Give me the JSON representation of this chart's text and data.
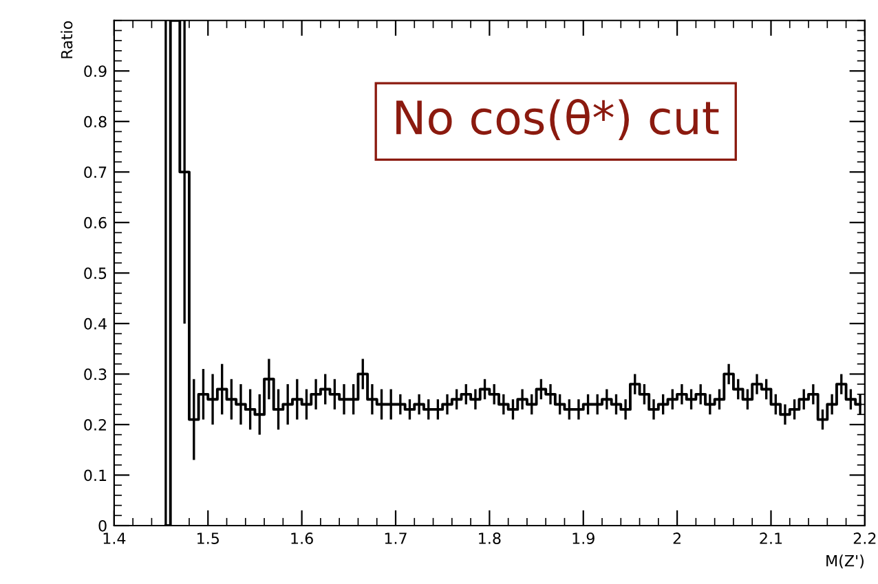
{
  "chart_data": {
    "type": "step",
    "xlabel": "M(Z')",
    "ylabel": "Ratio",
    "annotations": [
      "No cos(θ*) cut"
    ],
    "x": [
      1.455,
      1.465,
      1.475,
      1.485,
      1.495,
      1.505,
      1.515,
      1.525,
      1.535,
      1.545,
      1.555,
      1.565,
      1.575,
      1.585,
      1.595,
      1.605,
      1.615,
      1.625,
      1.635,
      1.645,
      1.655,
      1.665,
      1.675,
      1.685,
      1.695,
      1.705,
      1.715,
      1.725,
      1.735,
      1.745,
      1.755,
      1.765,
      1.775,
      1.785,
      1.795,
      1.805,
      1.815,
      1.825,
      1.835,
      1.845,
      1.855,
      1.865,
      1.875,
      1.885,
      1.895,
      1.905,
      1.915,
      1.925,
      1.935,
      1.945,
      1.955,
      1.965,
      1.975,
      1.985,
      1.995,
      2.005,
      2.015,
      2.025,
      2.035,
      2.045,
      2.055,
      2.065,
      2.075,
      2.085,
      2.095,
      2.105,
      2.115,
      2.125,
      2.135,
      2.145,
      2.155,
      2.165,
      2.175,
      2.185,
      2.195
    ],
    "values": [
      0,
      1.0,
      0.7,
      0.21,
      0.26,
      0.25,
      0.27,
      0.25,
      0.24,
      0.23,
      0.22,
      0.29,
      0.23,
      0.24,
      0.25,
      0.24,
      0.26,
      0.27,
      0.26,
      0.25,
      0.25,
      0.3,
      0.25,
      0.24,
      0.24,
      0.24,
      0.23,
      0.24,
      0.23,
      0.23,
      0.24,
      0.25,
      0.26,
      0.25,
      0.27,
      0.26,
      0.24,
      0.23,
      0.25,
      0.24,
      0.27,
      0.26,
      0.24,
      0.23,
      0.23,
      0.24,
      0.24,
      0.25,
      0.24,
      0.23,
      0.28,
      0.26,
      0.23,
      0.24,
      0.25,
      0.26,
      0.25,
      0.26,
      0.24,
      0.25,
      0.3,
      0.27,
      0.25,
      0.28,
      0.27,
      0.24,
      0.22,
      0.23,
      0.25,
      0.26,
      0.21,
      0.24,
      0.28,
      0.25,
      0.24
    ],
    "errors": [
      [
        0,
        1.0
      ],
      null,
      0.3,
      0.08,
      0.05,
      0.05,
      0.05,
      0.04,
      0.04,
      0.04,
      0.04,
      0.04,
      0.04,
      0.04,
      0.04,
      0.03,
      0.03,
      0.03,
      0.03,
      0.03,
      0.03,
      0.03,
      0.03,
      0.03,
      0.03,
      0.02,
      0.02,
      0.02,
      0.02,
      0.02,
      0.02,
      0.02,
      0.02,
      0.02,
      0.02,
      0.02,
      0.02,
      0.02,
      0.02,
      0.02,
      0.02,
      0.02,
      0.02,
      0.02,
      0.02,
      0.02,
      0.02,
      0.02,
      0.02,
      0.02,
      0.02,
      0.02,
      0.02,
      0.02,
      0.02,
      0.02,
      0.02,
      0.02,
      0.02,
      0.02,
      0.02,
      0.02,
      0.02,
      0.02,
      0.02,
      0.02,
      0.02,
      0.02,
      0.02,
      0.02,
      0.02,
      0.02,
      0.02,
      0.02,
      0.02
    ],
    "color": "#000000",
    "xlim": [
      1.4,
      2.2
    ],
    "xticks": [
      1.4,
      1.5,
      1.6,
      1.7,
      1.8,
      1.9,
      2,
      2.1,
      2.2
    ],
    "ylim": [
      0,
      1
    ],
    "yticks": [
      0,
      0.1,
      0.2,
      0.3,
      0.4,
      0.5,
      0.6,
      0.7,
      0.8,
      0.9
    ],
    "grid": false
  }
}
